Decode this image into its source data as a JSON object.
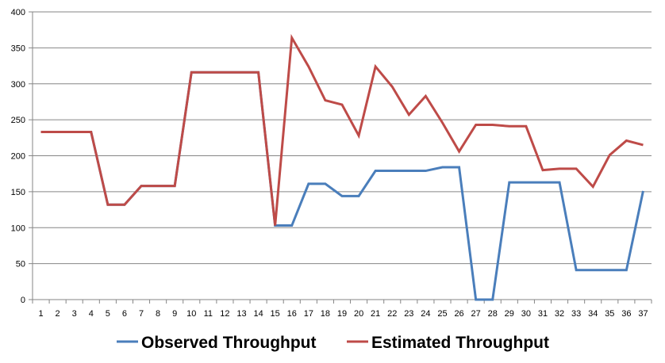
{
  "chart_data": {
    "type": "line",
    "title": "",
    "xlabel": "",
    "ylabel": "",
    "categories": [
      "1",
      "2",
      "3",
      "4",
      "5",
      "6",
      "7",
      "8",
      "9",
      "10",
      "11",
      "12",
      "13",
      "14",
      "15",
      "16",
      "17",
      "18",
      "19",
      "20",
      "21",
      "22",
      "23",
      "24",
      "25",
      "26",
      "27",
      "28",
      "29",
      "30",
      "31",
      "32",
      "33",
      "34",
      "35",
      "36",
      "37"
    ],
    "ylim": [
      0,
      400
    ],
    "yticks": [
      0,
      50,
      100,
      150,
      200,
      250,
      300,
      350,
      400
    ],
    "grid": true,
    "legend_position": "bottom",
    "series": [
      {
        "name": "Observed Throughput",
        "color": "#4a7ebb",
        "values": [
          233,
          233,
          233,
          233,
          132,
          132,
          158,
          158,
          158,
          316,
          316,
          316,
          316,
          316,
          103,
          103,
          161,
          161,
          144,
          144,
          179,
          179,
          179,
          179,
          184,
          184,
          0,
          0,
          163,
          163,
          163,
          163,
          41,
          41,
          41,
          41,
          151
        ]
      },
      {
        "name": "Estimated Throughput",
        "color": "#be4b48",
        "values": [
          233,
          233,
          233,
          233,
          132,
          132,
          158,
          158,
          158,
          316,
          316,
          316,
          316,
          316,
          103,
          364,
          324,
          277,
          271,
          228,
          324,
          296,
          257,
          283,
          246,
          206,
          243,
          243,
          241,
          241,
          180,
          182,
          182,
          157,
          201,
          221,
          215
        ]
      }
    ]
  }
}
